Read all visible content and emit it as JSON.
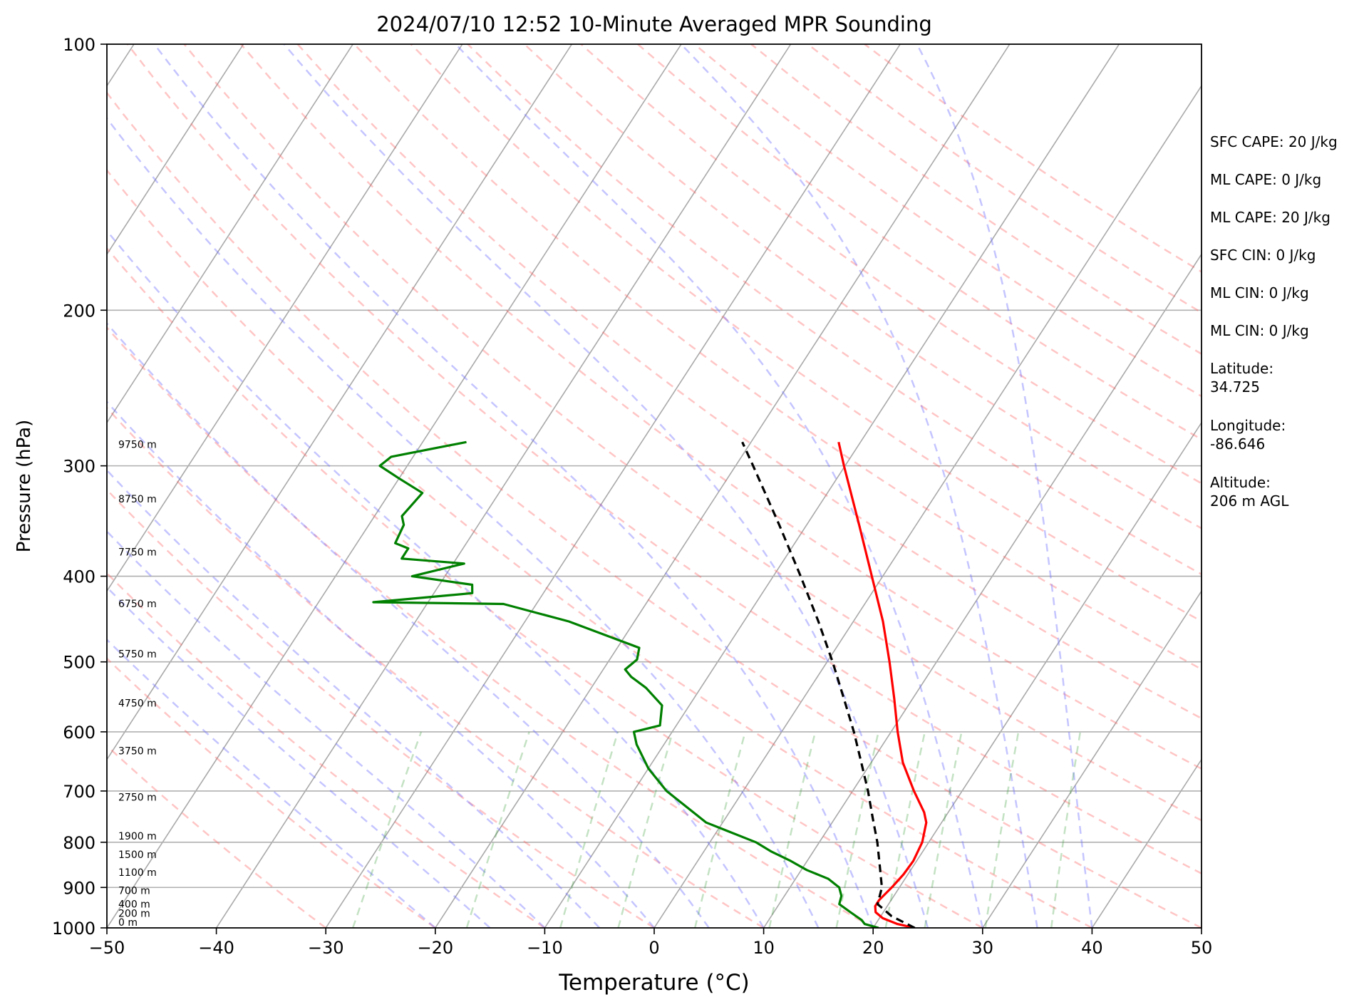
{
  "chart_data": {
    "type": "skew-t log-p sounding",
    "title": "2024/07/10 12:52 10-Minute Averaged MPR Sounding",
    "xlabel": "Temperature (°C)",
    "ylabel": "Pressure (hPa)",
    "xlim": [
      -50,
      50
    ],
    "ylim": [
      1000,
      100
    ],
    "y_scale": "log",
    "x_ticks": [
      -50,
      -40,
      -30,
      -20,
      -10,
      0,
      10,
      20,
      30,
      40,
      50
    ],
    "x_tick_labels": [
      "−50",
      "−40",
      "−30",
      "−20",
      "−10",
      "0",
      "10",
      "20",
      "30",
      "40",
      "50"
    ],
    "y_ticks": [
      1000,
      900,
      800,
      700,
      600,
      500,
      400,
      300,
      200,
      100
    ],
    "y_tick_labels": [
      "1000",
      "900",
      "800",
      "700",
      "600",
      "500",
      "400",
      "300",
      "200",
      "100"
    ],
    "grid": "on",
    "height_labels": [
      {
        "text": "0 m",
        "p": 1000
      },
      {
        "text": "200 m",
        "p": 977
      },
      {
        "text": "400 m",
        "p": 954
      },
      {
        "text": "700 m",
        "p": 921
      },
      {
        "text": "1100 m",
        "p": 878
      },
      {
        "text": "1500 m",
        "p": 838
      },
      {
        "text": "1900 m",
        "p": 799
      },
      {
        "text": "2750 m",
        "p": 722
      },
      {
        "text": "3750 m",
        "p": 640
      },
      {
        "text": "4750 m",
        "p": 565
      },
      {
        "text": "5750 m",
        "p": 497
      },
      {
        "text": "6750 m",
        "p": 436
      },
      {
        "text": "7750 m",
        "p": 381
      },
      {
        "text": "8750 m",
        "p": 332
      },
      {
        "text": "9750 m",
        "p": 288
      }
    ],
    "series": [
      {
        "role": "temperature",
        "color": "#ff0000",
        "style": "solid",
        "points": [
          [
            1000,
            23.8
          ],
          [
            990,
            22
          ],
          [
            975,
            20.3
          ],
          [
            960,
            19.3
          ],
          [
            945,
            18.9
          ],
          [
            930,
            18.9
          ],
          [
            900,
            19.3
          ],
          [
            870,
            19.6
          ],
          [
            840,
            19.7
          ],
          [
            800,
            19.4
          ],
          [
            760,
            18.6
          ],
          [
            740,
            17.8
          ],
          [
            700,
            15.6
          ],
          [
            650,
            12.9
          ],
          [
            600,
            10.6
          ],
          [
            550,
            8.3
          ],
          [
            500,
            5.7
          ],
          [
            450,
            2.7
          ],
          [
            400,
            -1.0
          ],
          [
            350,
            -5.2
          ],
          [
            300,
            -10.1
          ],
          [
            282,
            -12.0
          ]
        ]
      },
      {
        "role": "parcel",
        "color": "#000000",
        "style": "dashed",
        "points": [
          [
            1000,
            23.8
          ],
          [
            970,
            21.0
          ],
          [
            940,
            19.0
          ],
          [
            900,
            18.4
          ],
          [
            850,
            16.9
          ],
          [
            800,
            15.3
          ],
          [
            750,
            13.4
          ],
          [
            700,
            11.4
          ],
          [
            650,
            9.1
          ],
          [
            600,
            6.6
          ],
          [
            550,
            3.7
          ],
          [
            500,
            0.5
          ],
          [
            450,
            -3.2
          ],
          [
            400,
            -7.5
          ],
          [
            350,
            -12.5
          ],
          [
            300,
            -18.4
          ],
          [
            282,
            -20.8
          ]
        ]
      },
      {
        "role": "dewpoint",
        "color": "#008000",
        "style": "solid",
        "points": [
          [
            1000,
            20.5
          ],
          [
            990,
            19.0
          ],
          [
            980,
            18.5
          ],
          [
            960,
            17.0
          ],
          [
            940,
            15.5
          ],
          [
            920,
            15.2
          ],
          [
            900,
            14.5
          ],
          [
            880,
            13.0
          ],
          [
            860,
            10.5
          ],
          [
            840,
            8.5
          ],
          [
            820,
            6.2
          ],
          [
            800,
            4.2
          ],
          [
            760,
            -1.5
          ],
          [
            700,
            -7.0
          ],
          [
            660,
            -10.0
          ],
          [
            620,
            -12.5
          ],
          [
            600,
            -13.5
          ],
          [
            590,
            -11.5
          ],
          [
            560,
            -12.5
          ],
          [
            535,
            -15.0
          ],
          [
            520,
            -17.0
          ],
          [
            510,
            -18.0
          ],
          [
            497,
            -17.5
          ],
          [
            482,
            -18.0
          ],
          [
            450,
            -26.0
          ],
          [
            430,
            -33.0
          ],
          [
            428,
            -45.0
          ],
          [
            418,
            -36.5
          ],
          [
            409,
            -37.0
          ],
          [
            400,
            -43.0
          ],
          [
            387,
            -39.0
          ],
          [
            382,
            -45.0
          ],
          [
            372,
            -45.0
          ],
          [
            367,
            -46.5
          ],
          [
            350,
            -46.8
          ],
          [
            342,
            -47.5
          ],
          [
            322,
            -47.0
          ],
          [
            310,
            -50.0
          ],
          [
            300,
            -52.5
          ],
          [
            293,
            -52.0
          ],
          [
            282,
            -46.0
          ]
        ]
      }
    ]
  },
  "info": {
    "sfc_cape": "SFC CAPE: 20 J/kg",
    "ml_cape_1": "ML CAPE: 0 J/kg",
    "ml_cape_2": "ML CAPE: 20 J/kg",
    "sfc_cin": "SFC CIN: 0 J/kg",
    "ml_cin_1": "ML CIN: 0 J/kg",
    "ml_cin_2": "ML CIN: 0 J/kg",
    "latitude_label": "Latitude:",
    "latitude_value": "34.725",
    "longitude_label": "Longitude:",
    "longitude_value": "-86.646",
    "altitude_label": "Altitude:",
    "altitude_value": "206 m AGL"
  }
}
